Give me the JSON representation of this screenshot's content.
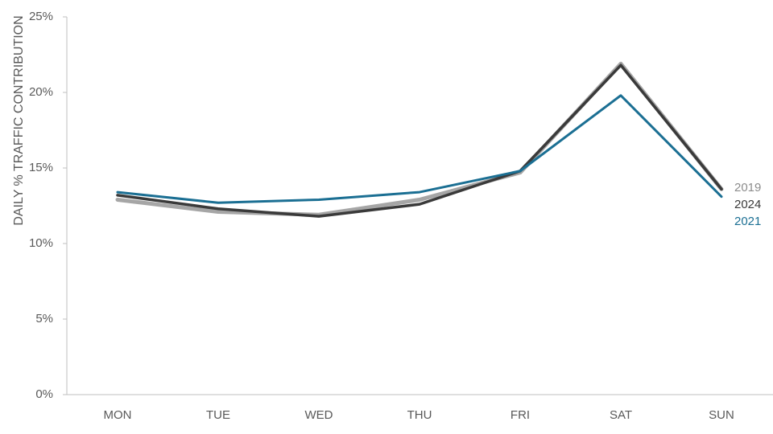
{
  "chart_data": {
    "type": "line",
    "title": "",
    "xlabel": "",
    "ylabel": "DAILY % TRAFFIC CONTRIBUTION",
    "categories": [
      "MON",
      "TUE",
      "WED",
      "THU",
      "FRI",
      "SAT",
      "SUN"
    ],
    "yticks": [
      "0%",
      "5%",
      "10%",
      "15%",
      "20%",
      "25%"
    ],
    "ylim": [
      0,
      25
    ],
    "grid": false,
    "legend": "labels at line ends (right)",
    "series": [
      {
        "name": "2019",
        "color": "#a6a6a6",
        "values": [
          12.9,
          12.1,
          11.9,
          12.9,
          14.7,
          21.9,
          13.6
        ]
      },
      {
        "name": "2024",
        "color": "#3a3a3a",
        "values": [
          13.2,
          12.3,
          11.8,
          12.6,
          14.8,
          21.8,
          13.6
        ]
      },
      {
        "name": "2021",
        "color": "#1b6f93",
        "values": [
          13.4,
          12.7,
          12.9,
          13.4,
          14.8,
          19.8,
          13.1
        ]
      }
    ]
  }
}
